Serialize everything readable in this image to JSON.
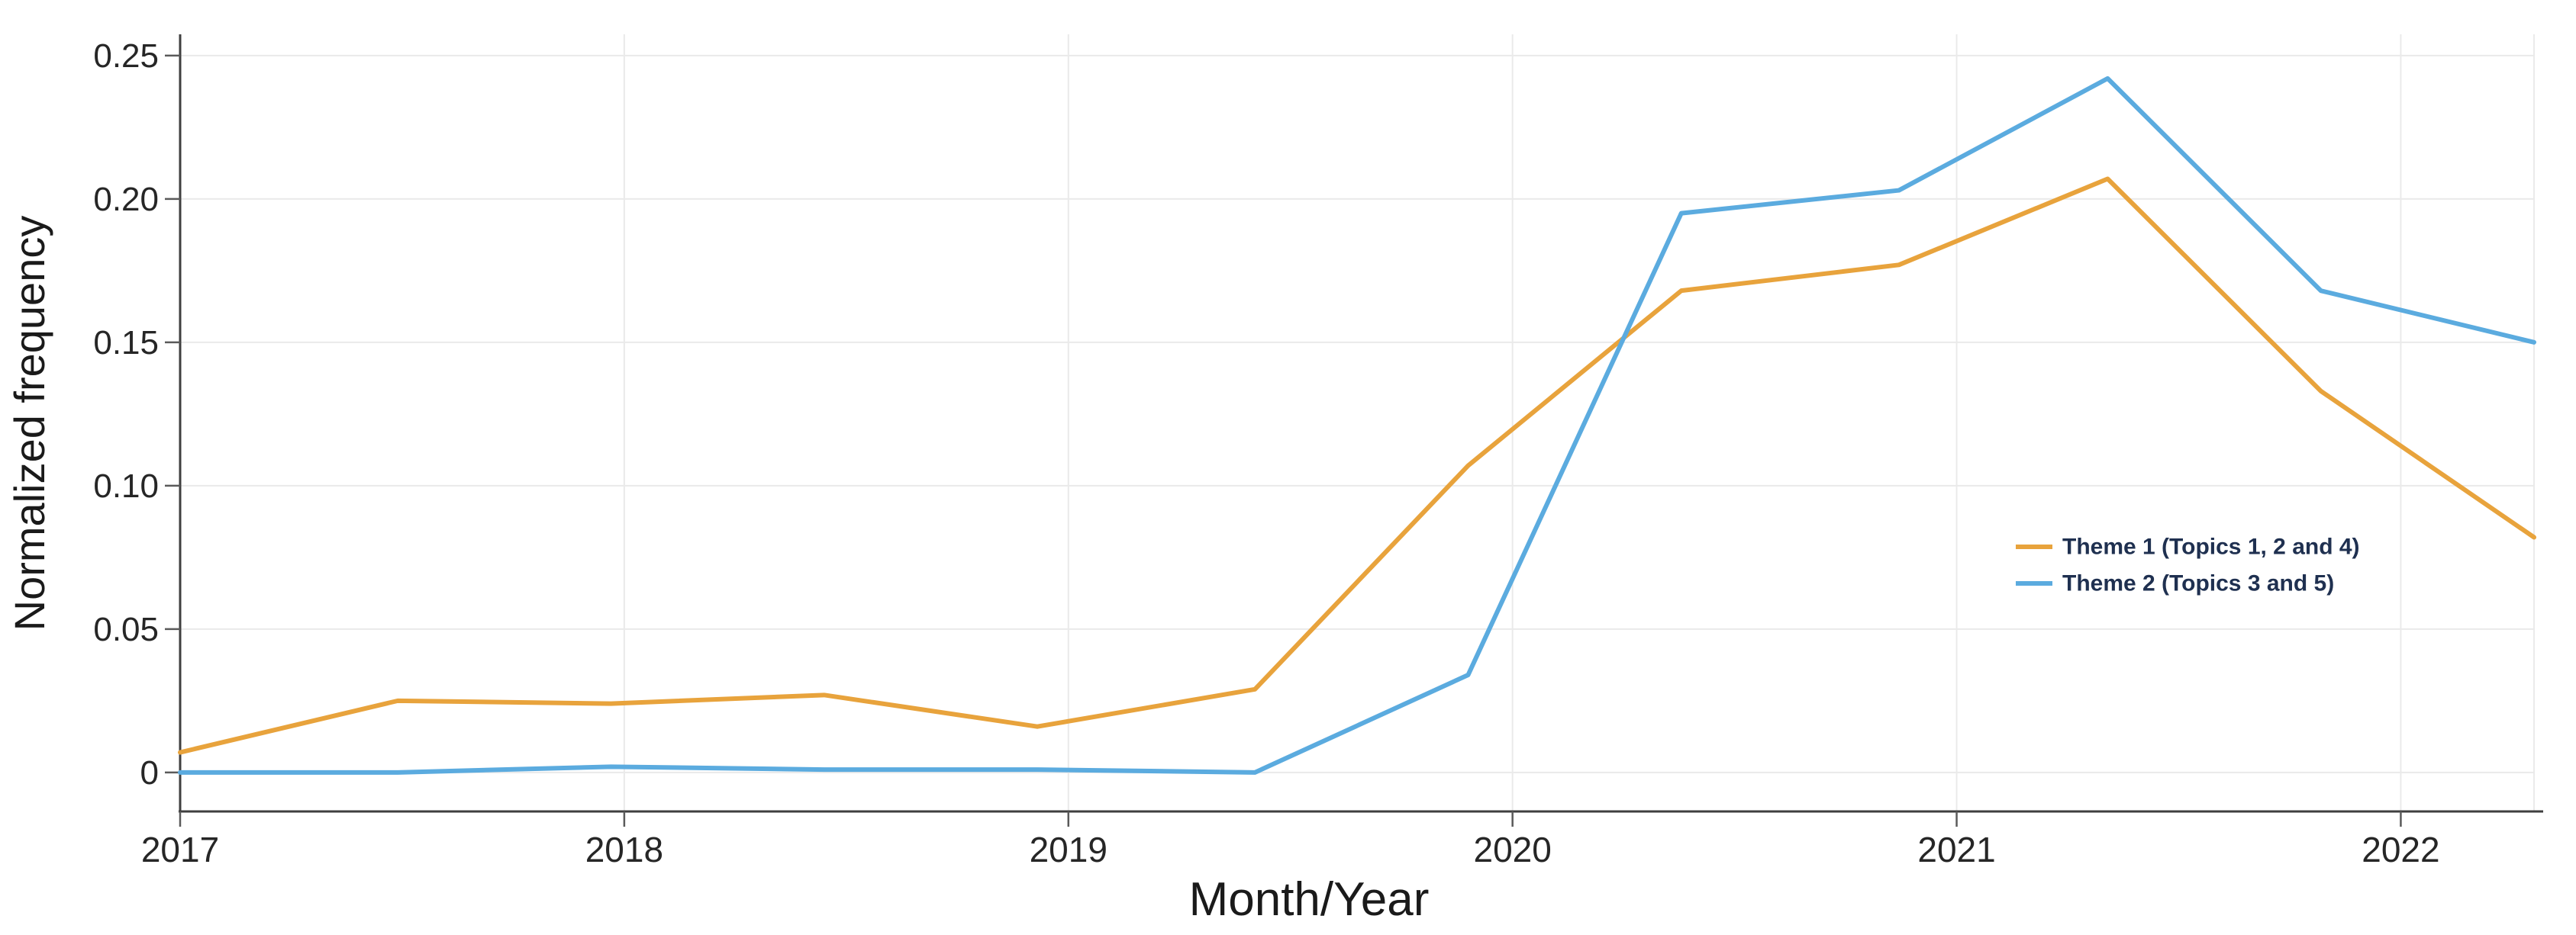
{
  "chart_data": {
    "type": "line",
    "title": "",
    "xlabel": "Month/Year",
    "ylabel": "Normalized frequency",
    "x": [
      2017.0,
      2017.49,
      2017.97,
      2018.45,
      2018.93,
      2019.42,
      2019.9,
      2020.38,
      2020.87,
      2021.34,
      2021.82,
      2022.3
    ],
    "series": [
      {
        "name": "Theme 1 (Topics 1, 2 and 4)",
        "color": "#E8A33C",
        "values": [
          0.007,
          0.025,
          0.024,
          0.027,
          0.016,
          0.029,
          0.107,
          0.168,
          0.177,
          0.207,
          0.133,
          0.082
        ]
      },
      {
        "name": "Theme 2 (Topics 3 and 5)",
        "color": "#5BABDF",
        "values": [
          0.0,
          0.0,
          0.002,
          0.001,
          0.001,
          0.0,
          0.034,
          0.195,
          0.203,
          0.242,
          0.168,
          0.15
        ]
      }
    ],
    "x_ticks": [
      2017,
      2018,
      2019,
      2020,
      2021,
      2022
    ],
    "x_tick_labels": [
      "2017",
      "2018",
      "2019",
      "2020",
      "2021",
      "2022"
    ],
    "y_ticks": [
      0,
      0.05,
      0.1,
      0.15,
      0.2,
      0.25
    ],
    "y_tick_labels": [
      "0",
      "0.05",
      "0.10",
      "0.15",
      "0.20",
      "0.25"
    ],
    "xlim": [
      2017,
      2022.3
    ],
    "ylim": [
      -0.0136,
      0.2574
    ],
    "grid": true,
    "legend_position": "center-right",
    "colors": {
      "grid": "#EAEAEA",
      "spine": "#3F3F3F",
      "tick": "#5a5a5a",
      "tick_text": "#262626",
      "legend_text": "#1F3050",
      "background": "#FFFFFF"
    }
  }
}
